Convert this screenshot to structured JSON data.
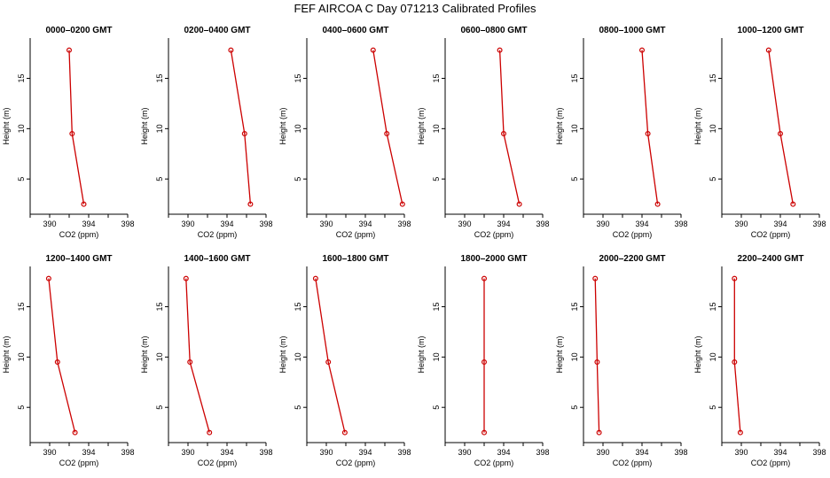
{
  "figure": {
    "title": "FEF AIRCOA C  Day 071213  Calibrated Profiles"
  },
  "colors": {
    "line": "#cc0000",
    "axis": "#000000",
    "background": "#ffffff"
  },
  "chart_data": [
    {
      "type": "line",
      "title": "0000–0200 GMT",
      "xlabel": "CO2 (ppm)",
      "ylabel": "Height (m)",
      "xlim": [
        388,
        398
      ],
      "ylim": [
        1.5,
        19
      ],
      "xticks": [
        390,
        394,
        398
      ],
      "yticks": [
        5,
        10,
        15
      ],
      "series": [
        {
          "x": [
            392.0,
            392.3,
            393.5
          ],
          "y": [
            17.8,
            9.5,
            2.5
          ]
        }
      ]
    },
    {
      "type": "line",
      "title": "0200–0400 GMT",
      "xlabel": "CO2 (ppm)",
      "ylabel": "Height (m)",
      "xlim": [
        388,
        398
      ],
      "ylim": [
        1.5,
        19
      ],
      "xticks": [
        390,
        394,
        398
      ],
      "yticks": [
        5,
        10,
        15
      ],
      "series": [
        {
          "x": [
            394.4,
            395.8,
            396.4
          ],
          "y": [
            17.8,
            9.5,
            2.5
          ]
        }
      ]
    },
    {
      "type": "line",
      "title": "0400–0600 GMT",
      "xlabel": "CO2 (ppm)",
      "ylabel": "Height (m)",
      "xlim": [
        388,
        398
      ],
      "ylim": [
        1.5,
        19
      ],
      "xticks": [
        390,
        394,
        398
      ],
      "yticks": [
        5,
        10,
        15
      ],
      "series": [
        {
          "x": [
            394.8,
            396.2,
            397.8
          ],
          "y": [
            17.8,
            9.5,
            2.5
          ]
        }
      ]
    },
    {
      "type": "line",
      "title": "0600–0800 GMT",
      "xlabel": "CO2 (ppm)",
      "ylabel": "Height (m)",
      "xlim": [
        388,
        398
      ],
      "ylim": [
        1.5,
        19
      ],
      "xticks": [
        390,
        394,
        398
      ],
      "yticks": [
        5,
        10,
        15
      ],
      "series": [
        {
          "x": [
            393.6,
            394.0,
            395.6
          ],
          "y": [
            17.8,
            9.5,
            2.5
          ]
        }
      ]
    },
    {
      "type": "line",
      "title": "0800–1000 GMT",
      "xlabel": "CO2 (ppm)",
      "ylabel": "Height (m)",
      "xlim": [
        388,
        398
      ],
      "ylim": [
        1.5,
        19
      ],
      "xticks": [
        390,
        394,
        398
      ],
      "yticks": [
        5,
        10,
        15
      ],
      "series": [
        {
          "x": [
            394.0,
            394.6,
            395.6
          ],
          "y": [
            17.8,
            9.5,
            2.5
          ]
        }
      ]
    },
    {
      "type": "line",
      "title": "1000–1200 GMT",
      "xlabel": "CO2 (ppm)",
      "ylabel": "Height (m)",
      "xlim": [
        388,
        398
      ],
      "ylim": [
        1.5,
        19
      ],
      "xticks": [
        390,
        394,
        398
      ],
      "yticks": [
        5,
        10,
        15
      ],
      "series": [
        {
          "x": [
            392.8,
            394.0,
            395.3
          ],
          "y": [
            17.8,
            9.5,
            2.5
          ]
        }
      ]
    },
    {
      "type": "line",
      "title": "1200–1400 GMT",
      "xlabel": "CO2 (ppm)",
      "ylabel": "Height (m)",
      "xlim": [
        388,
        398
      ],
      "ylim": [
        1.5,
        19
      ],
      "xticks": [
        390,
        394,
        398
      ],
      "yticks": [
        5,
        10,
        15
      ],
      "series": [
        {
          "x": [
            389.9,
            390.8,
            392.6
          ],
          "y": [
            17.8,
            9.5,
            2.5
          ]
        }
      ]
    },
    {
      "type": "line",
      "title": "1400–1600 GMT",
      "xlabel": "CO2 (ppm)",
      "ylabel": "Height (m)",
      "xlim": [
        388,
        398
      ],
      "ylim": [
        1.5,
        19
      ],
      "xticks": [
        390,
        394,
        398
      ],
      "yticks": [
        5,
        10,
        15
      ],
      "series": [
        {
          "x": [
            389.8,
            390.2,
            392.2
          ],
          "y": [
            17.8,
            9.5,
            2.5
          ]
        }
      ]
    },
    {
      "type": "line",
      "title": "1600–1800 GMT",
      "xlabel": "CO2 (ppm)",
      "ylabel": "Height (m)",
      "xlim": [
        388,
        398
      ],
      "ylim": [
        1.5,
        19
      ],
      "xticks": [
        390,
        394,
        398
      ],
      "yticks": [
        5,
        10,
        15
      ],
      "series": [
        {
          "x": [
            388.9,
            390.2,
            391.9
          ],
          "y": [
            17.8,
            9.5,
            2.5
          ]
        }
      ]
    },
    {
      "type": "line",
      "title": "1800–2000 GMT",
      "xlabel": "CO2 (ppm)",
      "ylabel": "Height (m)",
      "xlim": [
        388,
        398
      ],
      "ylim": [
        1.5,
        19
      ],
      "xticks": [
        390,
        394,
        398
      ],
      "yticks": [
        5,
        10,
        15
      ],
      "series": [
        {
          "x": [
            392.0,
            392.0,
            392.0
          ],
          "y": [
            17.8,
            9.5,
            2.5
          ]
        }
      ]
    },
    {
      "type": "line",
      "title": "2000–2200 GMT",
      "xlabel": "CO2 (ppm)",
      "ylabel": "Height (m)",
      "xlim": [
        388,
        398
      ],
      "ylim": [
        1.5,
        19
      ],
      "xticks": [
        390,
        394,
        398
      ],
      "yticks": [
        5,
        10,
        15
      ],
      "series": [
        {
          "x": [
            389.2,
            389.4,
            389.6
          ],
          "y": [
            17.8,
            9.5,
            2.5
          ]
        }
      ]
    },
    {
      "type": "line",
      "title": "2200–2400 GMT",
      "xlabel": "CO2 (ppm)",
      "ylabel": "Height (m)",
      "xlim": [
        388,
        398
      ],
      "ylim": [
        1.5,
        19
      ],
      "xticks": [
        390,
        394,
        398
      ],
      "yticks": [
        5,
        10,
        15
      ],
      "series": [
        {
          "x": [
            389.3,
            389.3,
            389.9
          ],
          "y": [
            17.8,
            9.5,
            2.5
          ]
        }
      ]
    }
  ]
}
